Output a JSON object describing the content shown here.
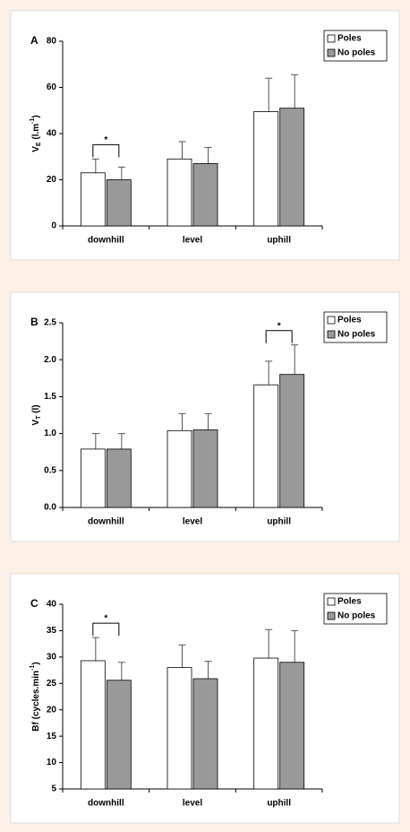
{
  "chart_data": [
    {
      "type": "bar",
      "panel_label": "A",
      "ylabel": [
        {
          "text": "V"
        },
        {
          "text": "E",
          "baseline": "sub"
        },
        {
          "text": " (l.m"
        },
        {
          "text": "-1",
          "baseline": "super"
        },
        {
          "text": ")"
        }
      ],
      "categories": [
        "downhill",
        "level",
        "uphill"
      ],
      "series": [
        {
          "name": "Poles",
          "color": "#ffffff",
          "values": [
            23,
            29,
            49.5
          ],
          "errors": [
            6,
            7.5,
            14.5
          ]
        },
        {
          "name": "No poles",
          "color": "#999999",
          "values": [
            20,
            27,
            51
          ],
          "errors": [
            5.5,
            7,
            14.5
          ]
        }
      ],
      "ylim": [
        0,
        80
      ],
      "yticks": [
        0,
        20,
        40,
        60,
        80
      ],
      "annotations": [
        {
          "text": "*",
          "category": "downhill"
        }
      ]
    },
    {
      "type": "bar",
      "panel_label": "B",
      "ylabel": [
        {
          "text": "V"
        },
        {
          "text": "T",
          "baseline": "sub"
        },
        {
          "text": " (l)"
        }
      ],
      "categories": [
        "downhill",
        "level",
        "uphill"
      ],
      "series": [
        {
          "name": "Poles",
          "color": "#ffffff",
          "values": [
            0.79,
            1.04,
            1.66
          ],
          "errors": [
            0.21,
            0.23,
            0.32
          ]
        },
        {
          "name": "No poles",
          "color": "#999999",
          "values": [
            0.79,
            1.05,
            1.8
          ],
          "errors": [
            0.21,
            0.22,
            0.4
          ]
        }
      ],
      "ylim": [
        0,
        2.5
      ],
      "yticks": [
        {
          "value": 0,
          "label": "0.0"
        },
        0.5,
        {
          "value": 1,
          "label": "1.0"
        },
        1.5,
        {
          "value": 2,
          "label": "2.0"
        },
        2.5
      ],
      "annotations": [
        {
          "text": "*",
          "category": "uphill"
        }
      ]
    },
    {
      "type": "bar",
      "panel_label": "C",
      "ylabel": [
        {
          "text": "Bf (cycles.min"
        },
        {
          "text": "-1",
          "baseline": "super"
        },
        {
          "text": ")"
        }
      ],
      "categories": [
        "downhill",
        "level",
        "uphill"
      ],
      "series": [
        {
          "name": "Poles",
          "color": "#ffffff",
          "values": [
            29.3,
            28,
            29.8
          ],
          "errors": [
            4.4,
            4.3,
            5.4
          ]
        },
        {
          "name": "No poles",
          "color": "#999999",
          "values": [
            25.6,
            25.9,
            29
          ],
          "errors": [
            3.4,
            3.3,
            6
          ]
        }
      ],
      "ylim": [
        5,
        40
      ],
      "yticks": [
        5,
        10,
        15,
        20,
        25,
        30,
        35,
        40
      ],
      "annotations": [
        {
          "text": "*",
          "category": "downhill"
        }
      ]
    }
  ]
}
